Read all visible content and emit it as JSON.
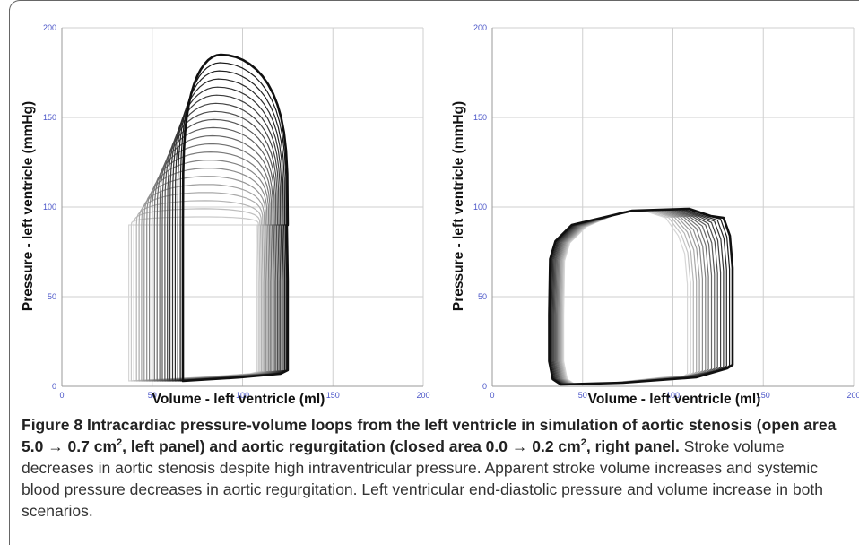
{
  "figure": {
    "label": "Figure 8",
    "title_a": "Intracardiac pressure-volume loops from the left ventricle in simulation of aortic stenosis (open area 5.0 → 0.7 cm",
    "sup_a": "2",
    "title_b": ", left panel) and aortic regurgitation (closed area 0.0 → 0.2 cm",
    "sup_b": "2",
    "title_c": ", right panel.",
    "body": "Stroke volume decreases in aortic stenosis despite high intraventricular pressure. Apparent stroke volume increases and systemic blood pressure decreases in aortic regurgitation. Left ventricular end-diastolic pressure and volume increase in both scenarios."
  },
  "chart_data": [
    {
      "type": "line",
      "panel": "left",
      "xlabel": "Volume - left ventricle (ml)",
      "ylabel": "Pressure - left ventricle (mmHg)",
      "xlim": [
        0,
        200
      ],
      "ylim": [
        0,
        200
      ],
      "xticks": [
        "0",
        "50",
        "100",
        "150",
        "200"
      ],
      "yticks": [
        "0",
        "50",
        "100",
        "150",
        "200"
      ],
      "grid": true,
      "loop_family": "stenosis",
      "loops": {
        "count": 22,
        "edv_range": [
          108,
          125
        ],
        "esv_range": [
          37,
          67
        ],
        "ped_range": [
          8,
          9
        ],
        "peak_pressure_range": [
          90,
          185
        ],
        "peak_volume_range": [
          78,
          88
        ]
      },
      "colors": {
        "first": "#d6d6d6",
        "last": "#101010"
      }
    },
    {
      "type": "line",
      "panel": "right",
      "xlabel": "Volume - left ventricle (ml)",
      "ylabel": "Pressure - left ventricle (mmHg)",
      "xlim": [
        0,
        200
      ],
      "ylim": [
        0,
        200
      ],
      "xticks": [
        "0",
        "50",
        "100",
        "150",
        "200"
      ],
      "yticks": [
        "0",
        "50",
        "100",
        "150",
        "200"
      ],
      "grid": true,
      "loop_family": "regurgitation",
      "loops": {
        "count": 16,
        "edv_range": [
          108,
          133
        ],
        "esv_range": [
          32,
          40
        ],
        "ped_range": [
          5,
          10
        ],
        "plateau_range": [
          98,
          99
        ],
        "initial_pressure_range": [
          70,
          80
        ]
      },
      "colors": {
        "first": "#d6d6d6",
        "last": "#101010"
      }
    }
  ]
}
